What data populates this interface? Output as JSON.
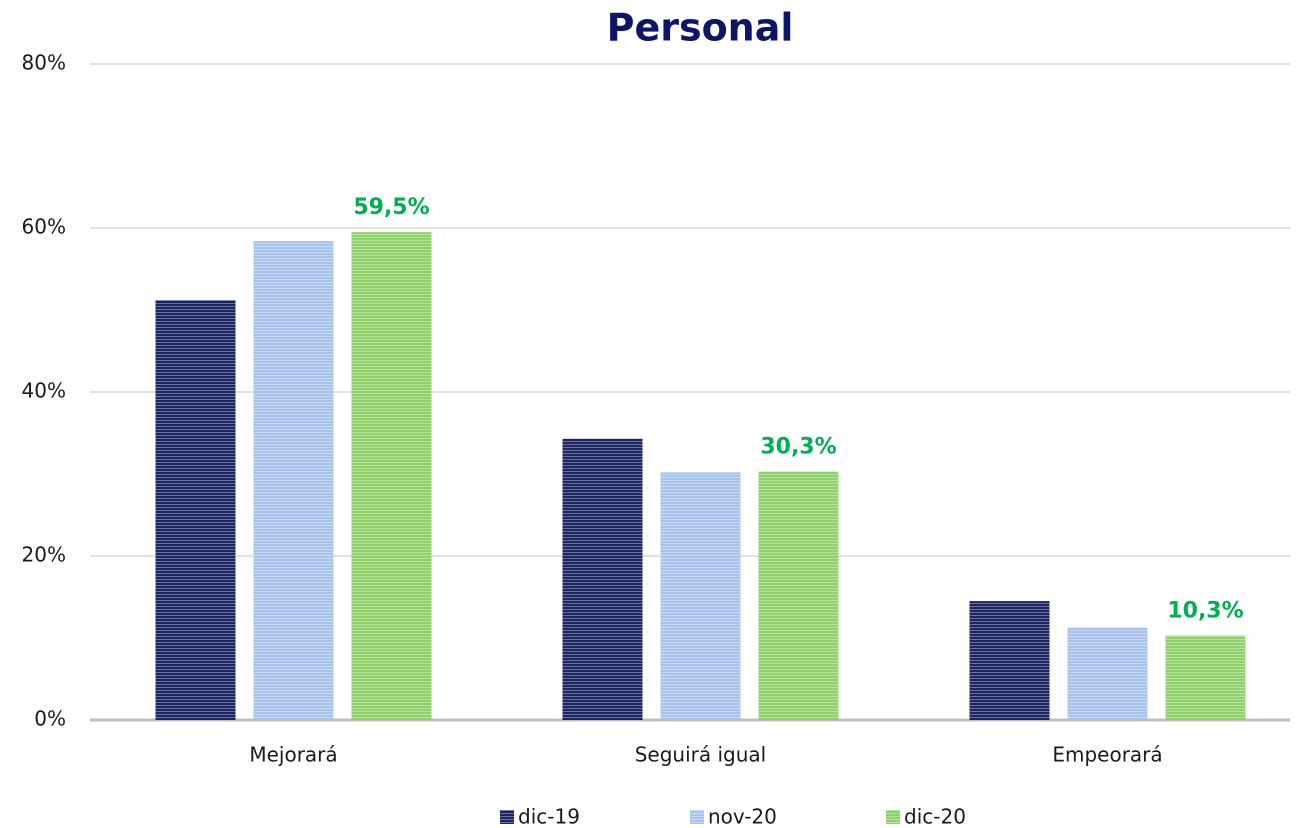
{
  "chart_data": {
    "type": "bar",
    "title": "Personal",
    "categories": [
      "Mejorará",
      "Seguirá igual",
      "Empeorará"
    ],
    "series": [
      {
        "name": "dic-19",
        "color": "#1b2563",
        "values": [
          51.2,
          34.3,
          14.5
        ]
      },
      {
        "name": "nov-20",
        "color": "#a9c3ec",
        "values": [
          58.4,
          30.2,
          11.3
        ]
      },
      {
        "name": "dic-20",
        "color": "#8fd16a",
        "values": [
          59.5,
          30.3,
          10.3
        ],
        "value_labels": [
          "59,5%",
          "30,3%",
          "10,3%"
        ],
        "value_label_color": "#00b050"
      }
    ],
    "ylim": [
      0,
      80
    ],
    "yticks": [
      {
        "value": 0,
        "label": "0%"
      },
      {
        "value": 20,
        "label": "20%"
      },
      {
        "value": 40,
        "label": "40%"
      },
      {
        "value": 60,
        "label": "60%"
      },
      {
        "value": 80,
        "label": "80%"
      }
    ],
    "grid": true,
    "legend": "bottom"
  }
}
